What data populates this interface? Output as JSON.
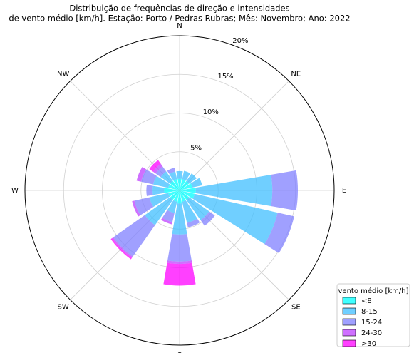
{
  "chart_data": {
    "type": "windrose",
    "title": [
      "Distribuição de frequências de direção e intensidades",
      "de vento médio [km/h]. Estação: Porto / Pedras Rubras; Mês: Novembro; Ano: 2022"
    ],
    "categories": [
      "N",
      null,
      "NE",
      null,
      "E",
      null,
      "SE",
      null,
      "S",
      null,
      "SW",
      null,
      "W",
      null,
      "NW",
      null
    ],
    "rlim": [
      0,
      20
    ],
    "rticks": [
      {
        "value": 5,
        "label": "5%"
      },
      {
        "value": 10,
        "label": "10%"
      },
      {
        "value": 15,
        "label": "15%"
      },
      {
        "value": 20,
        "label": "20%"
      }
    ],
    "grid": true,
    "legend_title": "vento médio [km/h]",
    "legend_position": "lower-right",
    "series": [
      {
        "name": "<8",
        "color": "#00ffff",
        "values": [
          1.5,
          1.5,
          1.5,
          1.7,
          2.1,
          2.0,
          1.5,
          1.5,
          1.7,
          1.5,
          1.5,
          1.5,
          2.0,
          1.5,
          1.5,
          1.5
        ]
      },
      {
        "name": "8-15",
        "color": "#40bfff",
        "values": [
          1.0,
          1.1,
          1.2,
          1.3,
          9.9,
          11.0,
          3.2,
          2.8,
          4.0,
          1.5,
          4.0,
          2.5,
          1.5,
          2.0,
          1.5,
          1.0
        ]
      },
      {
        "name": "15-24",
        "color": "#8080ff",
        "values": [
          0,
          0,
          0,
          0,
          3.3,
          2.2,
          0.9,
          0.6,
          3.5,
          1.2,
          5.0,
          2.0,
          0.8,
          1.6,
          0.8,
          0.5
        ]
      },
      {
        "name": "24-30",
        "color": "#bf40ff",
        "values": [
          0,
          0,
          0,
          0,
          0,
          0,
          0,
          0,
          0.3,
          0.3,
          0.2,
          0.3,
          0,
          0.6,
          0.4,
          0
        ]
      },
      {
        "name": ">30",
        "color": "#ff00ff",
        "values": [
          0,
          0,
          0,
          0,
          0,
          0,
          0,
          0,
          2.8,
          0,
          0.2,
          0,
          0,
          0,
          0.6,
          0
        ]
      }
    ]
  }
}
